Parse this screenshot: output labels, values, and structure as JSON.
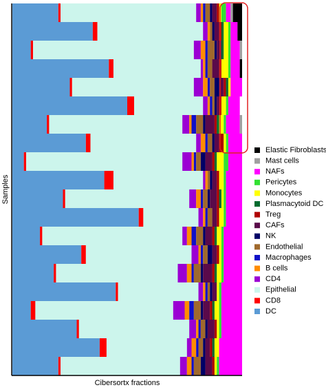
{
  "chart_data": {
    "type": "stacked-barh",
    "xlabel": "Cibersortx fractions",
    "ylabel": "Samples",
    "xlim": [
      0,
      1
    ],
    "categories": [
      null,
      null,
      null,
      null,
      null,
      null,
      null,
      null,
      null,
      null,
      null,
      null,
      null,
      null,
      null,
      null,
      null,
      null,
      null,
      null
    ],
    "legend": "right",
    "series": [
      {
        "name": "DC",
        "color": "#5b9bd5",
        "values": [
          0.2,
          0.35,
          0.08,
          0.42,
          0.25,
          0.5,
          0.15,
          0.32,
          0.05,
          0.4,
          0.22,
          0.55,
          0.12,
          0.3,
          0.18,
          0.45,
          0.08,
          0.28,
          0.38,
          0.2
        ]
      },
      {
        "name": "CD8",
        "color": "#ff0000",
        "values": [
          0.01,
          0.02,
          0.01,
          0.02,
          0.01,
          0.03,
          0.01,
          0.02,
          0.01,
          0.04,
          0.01,
          0.02,
          0.01,
          0.02,
          0.01,
          0.01,
          0.02,
          0.01,
          0.03,
          0.01
        ]
      },
      {
        "name": "Epithelial",
        "color": "#ccf5ec",
        "values": [
          0.59,
          0.46,
          0.7,
          0.38,
          0.53,
          0.3,
          0.58,
          0.46,
          0.68,
          0.39,
          0.54,
          0.24,
          0.61,
          0.46,
          0.53,
          0.35,
          0.6,
          0.48,
          0.35,
          0.52
        ]
      },
      {
        "name": "CD4",
        "color": "#9b00d3",
        "values": [
          0.02,
          0.02,
          0.03,
          0.01,
          0.04,
          0.02,
          0.03,
          0.02,
          0.04,
          0.01,
          0.03,
          0.02,
          0.02,
          0.03,
          0.04,
          0.02,
          0.05,
          0.03,
          0.02,
          0.03
        ]
      },
      {
        "name": "B cells",
        "color": "#ff8c00",
        "values": [
          0.01,
          0.01,
          0.02,
          0.01,
          0.02,
          0.01,
          0.01,
          0.02,
          0.01,
          0.01,
          0.02,
          0.01,
          0.02,
          0.01,
          0.02,
          0.01,
          0.02,
          0.01,
          0.02,
          0.02
        ]
      },
      {
        "name": "Macrophages",
        "color": "#1010c8",
        "values": [
          0.01,
          0,
          0.01,
          0.01,
          0.01,
          0.01,
          0.02,
          0.01,
          0.01,
          0,
          0.01,
          0.01,
          0.02,
          0.01,
          0.01,
          0.01,
          0.02,
          0.01,
          0.01,
          0.01
        ]
      },
      {
        "name": "Endothelial",
        "color": "#a0692c",
        "values": [
          0.02,
          0.01,
          0.03,
          0.02,
          0.02,
          0.01,
          0.03,
          0.02,
          0.02,
          0.01,
          0.02,
          0.02,
          0.03,
          0.02,
          0.03,
          0.01,
          0.03,
          0.02,
          0.02,
          0.03
        ]
      },
      {
        "name": "NK",
        "color": "#000066",
        "values": [
          0.01,
          0.01,
          0.01,
          0,
          0.02,
          0.01,
          0.01,
          0.01,
          0.02,
          0.01,
          0.01,
          0,
          0.01,
          0.02,
          0.01,
          0.01,
          0.01,
          0.01,
          0.01,
          0.02
        ]
      },
      {
        "name": "CAFs",
        "color": "#5a0a4a",
        "values": [
          0.02,
          0.02,
          0.02,
          0.03,
          0.02,
          0.01,
          0.04,
          0.02,
          0.03,
          0.02,
          0.03,
          0.02,
          0.03,
          0.02,
          0.04,
          0.02,
          0.03,
          0.03,
          0.02,
          0.03
        ]
      },
      {
        "name": "Treg",
        "color": "#b00000",
        "values": [
          0.01,
          0.01,
          0,
          0.01,
          0.01,
          0.01,
          0.01,
          0.02,
          0.01,
          0.01,
          0.01,
          0.01,
          0.01,
          0.01,
          0.01,
          0,
          0.01,
          0.01,
          0.01,
          0.01
        ]
      },
      {
        "name": "Plasmacytoid DC",
        "color": "#006b2e",
        "values": [
          0,
          0.01,
          0.01,
          0,
          0.01,
          0,
          0.01,
          0,
          0.01,
          0,
          0.01,
          0,
          0.01,
          0,
          0.01,
          0,
          0.01,
          0,
          0.01,
          0
        ]
      },
      {
        "name": "Monocytes",
        "color": "#ffff00",
        "values": [
          0.01,
          0.02,
          0.02,
          0.03,
          0.01,
          0.02,
          0.02,
          0.01,
          0.03,
          0.02,
          0.01,
          0.02,
          0.02,
          0.01,
          0.02,
          0.01,
          0.02,
          0.01,
          0.02,
          0.01
        ]
      },
      {
        "name": "Pericytes",
        "color": "#33e033",
        "values": [
          0.02,
          0.01,
          0.01,
          0.01,
          0,
          0.01,
          0.01,
          0.01,
          0.02,
          0.01,
          0.01,
          0.01,
          0.01,
          0.01,
          0.01,
          0.01,
          0.01,
          0.01,
          0,
          0.01
        ]
      },
      {
        "name": "NAFs",
        "color": "#ff00ff",
        "values": [
          0.02,
          0.03,
          0.04,
          0.04,
          0.05,
          0.05,
          0.06,
          0.06,
          0.06,
          0.07,
          0.07,
          0.07,
          0.08,
          0.08,
          0.08,
          0.09,
          0.09,
          0.09,
          0.1,
          0.1
        ]
      },
      {
        "name": "Mast cells",
        "color": "#a0a0a0",
        "values": [
          0.01,
          0,
          0.01,
          0,
          0,
          0,
          0.01,
          0,
          0,
          0,
          0,
          0,
          0,
          0,
          0,
          0,
          0,
          0,
          0,
          0
        ]
      },
      {
        "name": "Elastic Fibroblasts",
        "color": "#000000",
        "values": [
          0.04,
          0.02,
          0,
          0.01,
          0,
          0,
          0,
          0,
          0,
          0,
          0,
          0,
          0,
          0,
          0,
          0,
          0,
          0,
          0,
          0
        ]
      }
    ]
  }
}
